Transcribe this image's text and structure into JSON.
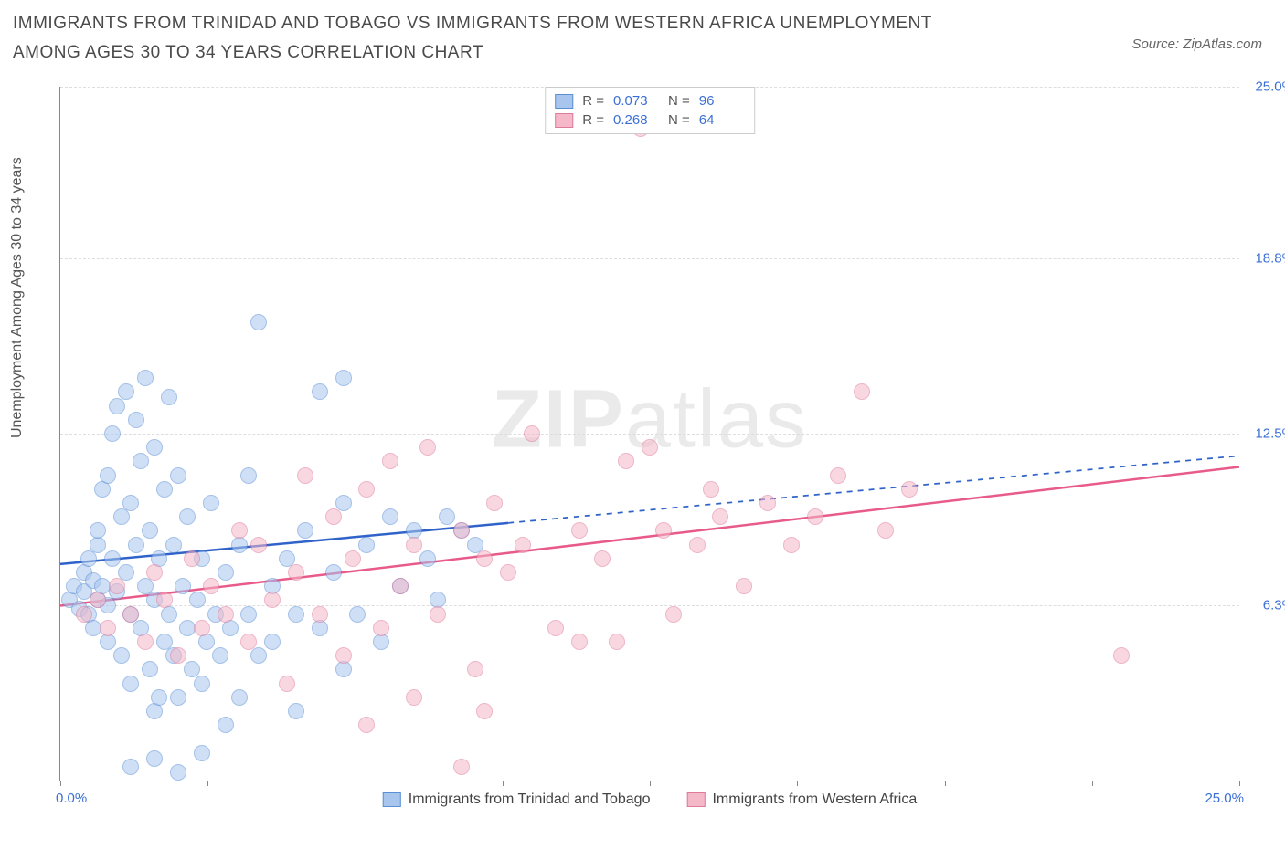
{
  "title": "IMMIGRANTS FROM TRINIDAD AND TOBAGO VS IMMIGRANTS FROM WESTERN AFRICA UNEMPLOYMENT AMONG AGES 30 TO 34 YEARS CORRELATION CHART",
  "source": "Source: ZipAtlas.com",
  "ylabel": "Unemployment Among Ages 30 to 34 years",
  "watermark_bold": "ZIP",
  "watermark_light": "atlas",
  "chart": {
    "type": "scatter",
    "xlim": [
      0,
      25
    ],
    "ylim": [
      0,
      25
    ],
    "x_axis_labels": {
      "left": "0.0%",
      "right": "25.0%"
    },
    "y_ticks": [
      {
        "v": 6.3,
        "label": "6.3%"
      },
      {
        "v": 12.5,
        "label": "12.5%"
      },
      {
        "v": 18.8,
        "label": "18.8%"
      },
      {
        "v": 25.0,
        "label": "25.0%"
      }
    ],
    "x_tick_positions": [
      0,
      3.125,
      6.25,
      9.375,
      12.5,
      15.625,
      18.75,
      21.875,
      25
    ],
    "grid_color": "#dddddd",
    "background_color": "#ffffff",
    "marker_radius": 8,
    "marker_border_width": 1.2,
    "series": [
      {
        "name": "Immigrants from Trinidad and Tobago",
        "key": "trinidad",
        "fill": "#a8c6ed",
        "stroke": "#5a8fd6",
        "fill_opacity": 0.55,
        "line_color": "#2f63c9",
        "line_width": 2.5,
        "R": "0.073",
        "N": "96",
        "trend": {
          "x1": 0,
          "y1": 7.8,
          "x2": 25,
          "y2": 11.7,
          "solid_until_x": 9.5
        },
        "points": [
          [
            0.2,
            6.5
          ],
          [
            0.3,
            7.0
          ],
          [
            0.4,
            6.2
          ],
          [
            0.5,
            7.5
          ],
          [
            0.5,
            6.8
          ],
          [
            0.6,
            8.0
          ],
          [
            0.6,
            6.0
          ],
          [
            0.7,
            7.2
          ],
          [
            0.7,
            5.5
          ],
          [
            0.8,
            8.5
          ],
          [
            0.8,
            6.5
          ],
          [
            0.8,
            9.0
          ],
          [
            0.9,
            7.0
          ],
          [
            0.9,
            10.5
          ],
          [
            1.0,
            6.3
          ],
          [
            1.0,
            11.0
          ],
          [
            1.0,
            5.0
          ],
          [
            1.1,
            8.0
          ],
          [
            1.1,
            12.5
          ],
          [
            1.2,
            6.8
          ],
          [
            1.2,
            13.5
          ],
          [
            1.3,
            9.5
          ],
          [
            1.3,
            4.5
          ],
          [
            1.4,
            7.5
          ],
          [
            1.4,
            14.0
          ],
          [
            1.5,
            6.0
          ],
          [
            1.5,
            10.0
          ],
          [
            1.5,
            3.5
          ],
          [
            1.6,
            8.5
          ],
          [
            1.6,
            13.0
          ],
          [
            1.7,
            5.5
          ],
          [
            1.7,
            11.5
          ],
          [
            1.8,
            7.0
          ],
          [
            1.8,
            14.5
          ],
          [
            1.9,
            4.0
          ],
          [
            1.9,
            9.0
          ],
          [
            2.0,
            6.5
          ],
          [
            2.0,
            12.0
          ],
          [
            2.0,
            2.5
          ],
          [
            2.1,
            8.0
          ],
          [
            2.1,
            3.0
          ],
          [
            2.2,
            5.0
          ],
          [
            2.2,
            10.5
          ],
          [
            2.3,
            13.8
          ],
          [
            2.3,
            6.0
          ],
          [
            2.4,
            4.5
          ],
          [
            2.4,
            8.5
          ],
          [
            2.5,
            11.0
          ],
          [
            2.5,
            3.0
          ],
          [
            2.6,
            7.0
          ],
          [
            2.7,
            5.5
          ],
          [
            2.7,
            9.5
          ],
          [
            2.8,
            4.0
          ],
          [
            2.9,
            6.5
          ],
          [
            3.0,
            8.0
          ],
          [
            3.0,
            3.5
          ],
          [
            3.1,
            5.0
          ],
          [
            3.2,
            10.0
          ],
          [
            3.3,
            6.0
          ],
          [
            3.4,
            4.5
          ],
          [
            3.5,
            7.5
          ],
          [
            3.5,
            2.0
          ],
          [
            3.6,
            5.5
          ],
          [
            3.8,
            8.5
          ],
          [
            3.8,
            3.0
          ],
          [
            4.0,
            6.0
          ],
          [
            4.0,
            11.0
          ],
          [
            4.2,
            4.5
          ],
          [
            4.2,
            16.5
          ],
          [
            4.5,
            7.0
          ],
          [
            4.5,
            5.0
          ],
          [
            4.8,
            8.0
          ],
          [
            5.0,
            6.0
          ],
          [
            5.0,
            2.5
          ],
          [
            5.2,
            9.0
          ],
          [
            5.5,
            14.0
          ],
          [
            5.5,
            5.5
          ],
          [
            5.8,
            7.5
          ],
          [
            6.0,
            4.0
          ],
          [
            6.0,
            10.0
          ],
          [
            6.0,
            14.5
          ],
          [
            6.3,
            6.0
          ],
          [
            6.5,
            8.5
          ],
          [
            6.8,
            5.0
          ],
          [
            7.0,
            9.5
          ],
          [
            7.2,
            7.0
          ],
          [
            7.5,
            9.0
          ],
          [
            7.8,
            8.0
          ],
          [
            8.0,
            6.5
          ],
          [
            8.2,
            9.5
          ],
          [
            8.5,
            9.0
          ],
          [
            8.8,
            8.5
          ],
          [
            1.5,
            0.5
          ],
          [
            2.0,
            0.8
          ],
          [
            2.5,
            0.3
          ],
          [
            3.0,
            1.0
          ]
        ]
      },
      {
        "name": "Immigrants from Western Africa",
        "key": "westafrica",
        "fill": "#f5b8c9",
        "stroke": "#e07a9a",
        "fill_opacity": 0.55,
        "line_color": "#e85a8a",
        "line_width": 2.5,
        "R": "0.268",
        "N": "64",
        "trend": {
          "x1": 0,
          "y1": 6.3,
          "x2": 25,
          "y2": 11.3,
          "solid_until_x": 25
        },
        "points": [
          [
            0.5,
            6.0
          ],
          [
            0.8,
            6.5
          ],
          [
            1.0,
            5.5
          ],
          [
            1.2,
            7.0
          ],
          [
            1.5,
            6.0
          ],
          [
            1.8,
            5.0
          ],
          [
            2.0,
            7.5
          ],
          [
            2.2,
            6.5
          ],
          [
            2.5,
            4.5
          ],
          [
            2.8,
            8.0
          ],
          [
            3.0,
            5.5
          ],
          [
            3.2,
            7.0
          ],
          [
            3.5,
            6.0
          ],
          [
            3.8,
            9.0
          ],
          [
            4.0,
            5.0
          ],
          [
            4.2,
            8.5
          ],
          [
            4.5,
            6.5
          ],
          [
            4.8,
            3.5
          ],
          [
            5.0,
            7.5
          ],
          [
            5.2,
            11.0
          ],
          [
            5.5,
            6.0
          ],
          [
            5.8,
            9.5
          ],
          [
            6.0,
            4.5
          ],
          [
            6.2,
            8.0
          ],
          [
            6.5,
            10.5
          ],
          [
            6.8,
            5.5
          ],
          [
            7.0,
            11.5
          ],
          [
            7.2,
            7.0
          ],
          [
            7.5,
            8.5
          ],
          [
            7.8,
            12.0
          ],
          [
            8.0,
            6.0
          ],
          [
            8.5,
            9.0
          ],
          [
            8.8,
            4.0
          ],
          [
            9.0,
            8.0
          ],
          [
            9.2,
            10.0
          ],
          [
            9.5,
            7.5
          ],
          [
            9.8,
            8.5
          ],
          [
            10.0,
            12.5
          ],
          [
            10.5,
            5.5
          ],
          [
            11.0,
            9.0
          ],
          [
            11.0,
            5.0
          ],
          [
            11.5,
            8.0
          ],
          [
            12.0,
            11.5
          ],
          [
            12.3,
            23.5
          ],
          [
            12.5,
            12.0
          ],
          [
            12.8,
            9.0
          ],
          [
            13.0,
            6.0
          ],
          [
            13.5,
            8.5
          ],
          [
            13.8,
            10.5
          ],
          [
            14.0,
            9.5
          ],
          [
            14.5,
            7.0
          ],
          [
            15.0,
            10.0
          ],
          [
            15.5,
            8.5
          ],
          [
            16.0,
            9.5
          ],
          [
            16.5,
            11.0
          ],
          [
            17.0,
            14.0
          ],
          [
            17.5,
            9.0
          ],
          [
            18.0,
            10.5
          ],
          [
            8.5,
            0.5
          ],
          [
            9.0,
            2.5
          ],
          [
            6.5,
            2.0
          ],
          [
            7.5,
            3.0
          ],
          [
            22.5,
            4.5
          ],
          [
            11.8,
            5.0
          ]
        ]
      }
    ]
  },
  "legend_bottom": [
    {
      "key": "trinidad",
      "label": "Immigrants from Trinidad and Tobago"
    },
    {
      "key": "westafrica",
      "label": "Immigrants from Western Africa"
    }
  ]
}
